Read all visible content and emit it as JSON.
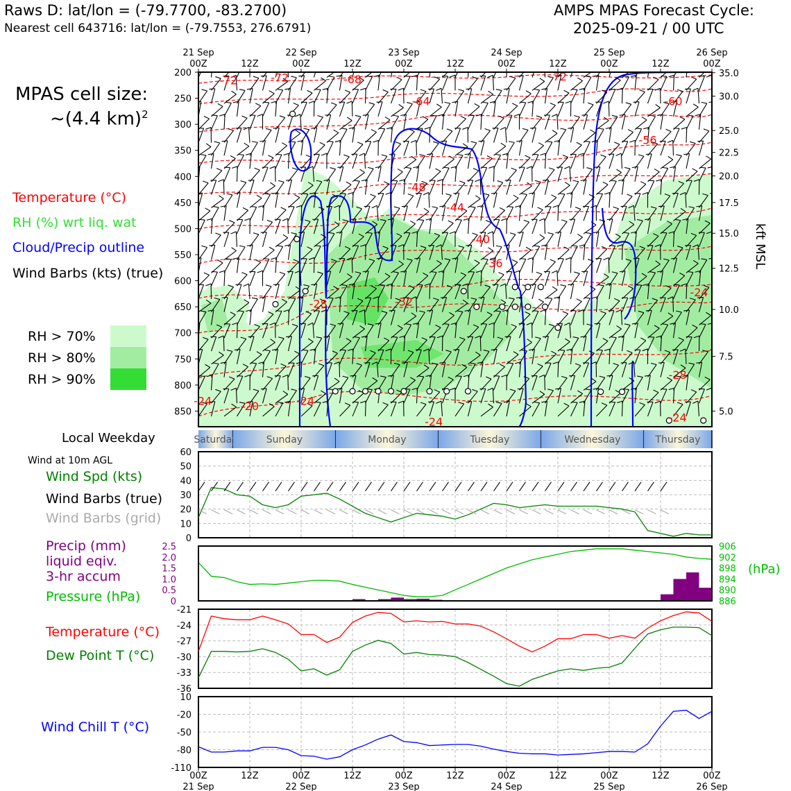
{
  "header": {
    "title_left": "Raws D: lat/lon = (-79.7700, -83.2700)",
    "subtitle_left": "Nearest cell 643716: lat/lon = (-79.7553, 276.6791)",
    "title_right_1": "AMPS MPAS Forecast Cycle:",
    "title_right_2": "2025-09-21 / 00 UTC"
  },
  "cell_size": {
    "line1": "MPAS cell size:",
    "line2_base": "~(4.4 km)",
    "line2_sup": "2"
  },
  "legend": {
    "temperature": "Temperature (°C)",
    "rh": "RH (%) wrt liq. wat",
    "cloud": "Cloud/Precip outline",
    "wind": "Wind Barbs (kts) (true)",
    "rh_levels": [
      "RH > 70%",
      "RH > 80%",
      "RH > 90%"
    ]
  },
  "colors": {
    "temperature": "#ff0000",
    "rh_label": "#33dd33",
    "cloud": "#0000ff",
    "rh70": "#cdfacd",
    "rh80": "#a2eca2",
    "rh90": "#33dd33",
    "wind_speed": "#008000",
    "grid_barbs": "#aaaaaa",
    "precip": "#800080",
    "pressure": "#00bb00",
    "dewpoint": "#008000",
    "windchill": "#0000ff"
  },
  "time_axis": {
    "top_labels": [
      [
        "21 Sep",
        "00Z"
      ],
      [
        "",
        "12Z"
      ],
      [
        "22 Sep",
        "00Z"
      ],
      [
        "",
        "12Z"
      ],
      [
        "23 Sep",
        "00Z"
      ],
      [
        "",
        "12Z"
      ],
      [
        "24 Sep",
        "00Z"
      ],
      [
        "",
        "12Z"
      ],
      [
        "25 Sep",
        "00Z"
      ],
      [
        "",
        "12Z"
      ],
      [
        "26 Sep",
        "00Z"
      ]
    ],
    "bottom_ticks": [
      "00Z",
      "12Z",
      "00Z",
      "12Z",
      "00Z",
      "12Z",
      "00Z",
      "12Z",
      "00Z",
      "12Z",
      "00Z"
    ],
    "bottom_dates": [
      "21 Sep",
      "22 Sep",
      "23 Sep",
      "24 Sep",
      "25 Sep",
      "26 Sep"
    ]
  },
  "weekday": {
    "label": "Local Weekday",
    "days": [
      "Saturday",
      "Sunday",
      "Monday",
      "Tuesday",
      "Wednesday",
      "Thursday"
    ]
  },
  "side_labels": {
    "wind_10m": "Wind at 10m AGL",
    "wind_spd": "Wind Spd (kts)",
    "wind_barbs_true": "Wind Barbs (true)",
    "wind_barbs_grid": "Wind Barbs (grid)",
    "precip_1": "Precip (mm)",
    "precip_2": "liquid eqiv.",
    "precip_3": "3-hr accum",
    "pressure": "Pressure (hPa)",
    "pressure_unit": "(hPa)",
    "temperature": "Temperature (°C)",
    "dewpoint": "Dew Point T (°C)",
    "windchill": "Wind Chill T (°C)",
    "kft_msl": "kft MSL"
  },
  "chart_data": [
    {
      "type": "time-height cross section",
      "x_hours": [
        0,
        120
      ],
      "y_pressure_hPa": [
        200,
        880
      ],
      "left_axis_ticks": [
        "200",
        "250",
        "300",
        "350",
        "400",
        "450",
        "500",
        "550",
        "600",
        "650",
        "700",
        "750",
        "800",
        "850"
      ],
      "right_axis_ticks": [
        "35.0",
        "30.0",
        "25.0",
        "22.5",
        "20.0",
        "17.5",
        "15.0",
        "12.5",
        "10.0",
        "7.5",
        "5.0"
      ],
      "right_axis_ticks_hPa": [
        201,
        246,
        312,
        354,
        399,
        450,
        509,
        576,
        655,
        745,
        850
      ],
      "temperature_contour_labels": [
        {
          "text": "-72",
          "t": 7,
          "p": 215
        },
        {
          "text": "-72",
          "t": 19,
          "p": 210
        },
        {
          "text": "-68",
          "t": 36,
          "p": 213
        },
        {
          "text": "-64",
          "t": 52,
          "p": 255
        },
        {
          "text": "-72",
          "t": 84,
          "p": 208
        },
        {
          "text": "-60",
          "t": 111,
          "p": 255
        },
        {
          "text": "-56",
          "t": 105,
          "p": 330
        },
        {
          "text": "-48",
          "t": 51,
          "p": 420
        },
        {
          "text": "-44",
          "t": 60,
          "p": 459
        },
        {
          "text": "-40",
          "t": 66,
          "p": 520
        },
        {
          "text": "-36",
          "t": 69,
          "p": 566
        },
        {
          "text": "-32",
          "t": 48,
          "p": 640
        },
        {
          "text": "-28",
          "t": 28,
          "p": 644
        },
        {
          "text": "-24",
          "t": 117,
          "p": 622
        },
        {
          "text": "-28",
          "t": 112,
          "p": 780
        },
        {
          "text": "-24",
          "t": 1,
          "p": 830
        },
        {
          "text": "-20",
          "t": 12,
          "p": 840
        },
        {
          "text": "-24",
          "t": 25,
          "p": 830
        },
        {
          "text": "-24",
          "t": 55,
          "p": 870
        },
        {
          "text": "-24",
          "t": 112,
          "p": 862
        }
      ],
      "rh_regions": "RH>70% broad region 21Sep 12Z–25Sep 00Z between 400–880 hPa; RH>80%/90% cores near 600–800 hPa on 22–24 Sep; moist layer 25–26 Sep below 450 hPa",
      "cloud_outline": "blue contours bounding cloud/precip regions",
      "wind_barbs": "true-direction wind barbs every 3 h at each 25 hPa level"
    },
    {
      "type": "line",
      "title": "Wind Spd (kts)",
      "ylim": [
        0,
        60
      ],
      "y_ticks": [
        "0",
        "10",
        "20",
        "30",
        "40",
        "50",
        "60"
      ],
      "x_hours": [
        0,
        3,
        6,
        9,
        12,
        15,
        18,
        21,
        24,
        27,
        30,
        33,
        36,
        39,
        42,
        45,
        48,
        51,
        54,
        57,
        60,
        63,
        66,
        69,
        72,
        75,
        78,
        81,
        84,
        87,
        90,
        93,
        96,
        99,
        102,
        105,
        108,
        111,
        114,
        117,
        120
      ],
      "series": [
        {
          "name": "Wind Spd",
          "values": [
            14,
            35,
            34,
            30,
            29,
            23,
            21,
            23,
            29,
            30,
            31,
            27,
            22,
            17,
            14,
            11,
            14,
            17,
            16,
            15,
            13,
            16,
            20,
            24,
            23,
            21,
            22,
            23,
            22,
            22,
            22,
            22,
            21,
            20,
            18,
            5,
            3,
            1,
            3,
            2,
            2
          ]
        }
      ],
      "barb_panel": "true barbs ~35 kts row above, grid barbs row near 18 kts"
    },
    {
      "type": "bar+line",
      "precip_mm": {
        "ylim": [
          0,
          2.5
        ],
        "y_ticks": [
          "0",
          "0.5",
          "1.0",
          "1.5",
          "2.0",
          "2.5"
        ],
        "bars": [
          {
            "t0": 36,
            "t1": 39,
            "v": 0.08
          },
          {
            "t0": 42,
            "t1": 45,
            "v": 0.08
          },
          {
            "t0": 45,
            "t1": 48,
            "v": 0.15
          },
          {
            "t0": 48,
            "t1": 51,
            "v": 0.08
          },
          {
            "t0": 51,
            "t1": 54,
            "v": 0.1
          },
          {
            "t0": 54,
            "t1": 57,
            "v": 0.05
          },
          {
            "t0": 57,
            "t1": 60,
            "v": 0.03
          },
          {
            "t0": 108,
            "t1": 111,
            "v": 0.3
          },
          {
            "t0": 111,
            "t1": 114,
            "v": 1.0
          },
          {
            "t0": 114,
            "t1": 117,
            "v": 1.3
          },
          {
            "t0": 117,
            "t1": 120,
            "v": 0.6
          }
        ]
      },
      "pressure_hPa": {
        "ylim": [
          886,
          906
        ],
        "y_ticks": [
          "886",
          "890",
          "894",
          "898",
          "902",
          "906"
        ],
        "x_hours": [
          0,
          3,
          6,
          9,
          12,
          15,
          18,
          21,
          24,
          27,
          30,
          33,
          36,
          39,
          42,
          45,
          48,
          51,
          54,
          57,
          60,
          63,
          66,
          69,
          72,
          75,
          78,
          81,
          84,
          87,
          90,
          93,
          96,
          99,
          102,
          105,
          108,
          111,
          114,
          117,
          120
        ],
        "values": [
          900,
          895,
          894.5,
          893,
          892,
          892.2,
          892,
          892.5,
          893,
          893.5,
          893.5,
          893.2,
          892,
          891,
          890,
          889,
          888,
          887.5,
          887.5,
          888,
          890,
          892,
          894,
          896,
          898,
          899.5,
          901,
          902,
          903,
          904,
          904.5,
          905,
          905,
          905,
          904.5,
          904,
          903.5,
          903,
          902,
          901.5,
          901.2
        ]
      }
    },
    {
      "type": "line",
      "ylim": [
        -36,
        -21
      ],
      "y_ticks": [
        "-36",
        "-33",
        "-30",
        "-27",
        "-24",
        "-21"
      ],
      "x_hours": [
        0,
        3,
        6,
        9,
        12,
        15,
        18,
        21,
        24,
        27,
        30,
        33,
        36,
        39,
        42,
        45,
        48,
        51,
        54,
        57,
        60,
        63,
        66,
        69,
        72,
        75,
        78,
        81,
        84,
        87,
        90,
        93,
        96,
        99,
        102,
        105,
        108,
        111,
        114,
        117,
        120
      ],
      "series": [
        {
          "name": "Temperature",
          "values": [
            -29,
            -22.3,
            -22.8,
            -23,
            -23,
            -22.3,
            -23,
            -23.8,
            -25.8,
            -25.8,
            -27.3,
            -26.3,
            -23.5,
            -22.3,
            -21.6,
            -21.8,
            -23.4,
            -23.2,
            -23.4,
            -23.3,
            -23.8,
            -23.8,
            -24.2,
            -25.3,
            -26.6,
            -28,
            -29.1,
            -28,
            -26.6,
            -26.6,
            -25.8,
            -25.8,
            -26.5,
            -26,
            -26.5,
            -24.6,
            -23.2,
            -22.2,
            -21.5,
            -21.7,
            -23.3
          ]
        },
        {
          "name": "Dew Point",
          "values": [
            -34,
            -29,
            -29,
            -29.1,
            -29,
            -28.5,
            -29.2,
            -30.5,
            -32.7,
            -32.3,
            -33.5,
            -32.5,
            -29,
            -27.8,
            -26.9,
            -27.5,
            -29.5,
            -29.2,
            -29.6,
            -29.7,
            -30,
            -31.1,
            -32.4,
            -33.7,
            -35.1,
            -35.6,
            -34.3,
            -33.5,
            -32.7,
            -32.3,
            -32.6,
            -32.2,
            -32,
            -31.2,
            -28.4,
            -25.7,
            -24.9,
            -24.4,
            -24.4,
            -24.5,
            -26
          ]
        }
      ]
    },
    {
      "type": "line",
      "ylim": [
        -110,
        10
      ],
      "y_ticks": [
        "-110",
        "-80",
        "-50",
        "-20",
        "10"
      ],
      "x_hours": [
        0,
        3,
        6,
        9,
        12,
        15,
        18,
        21,
        24,
        27,
        30,
        33,
        36,
        39,
        42,
        45,
        48,
        51,
        54,
        57,
        60,
        63,
        66,
        69,
        72,
        75,
        78,
        81,
        84,
        87,
        90,
        93,
        96,
        99,
        102,
        105,
        108,
        111,
        114,
        117,
        120
      ],
      "series": [
        {
          "name": "Wind Chill",
          "values": [
            -75,
            -84,
            -84,
            -82,
            -82,
            -76,
            -76,
            -80,
            -90,
            -91,
            -96,
            -92,
            -80,
            -72,
            -62,
            -55,
            -66,
            -68,
            -73,
            -72,
            -71,
            -71,
            -74,
            -79,
            -83,
            -86,
            -87,
            -87,
            -89,
            -88,
            -87,
            -85,
            -83,
            -83,
            -84,
            -70,
            -40,
            -15,
            -13,
            -27,
            -15
          ]
        }
      ]
    }
  ]
}
